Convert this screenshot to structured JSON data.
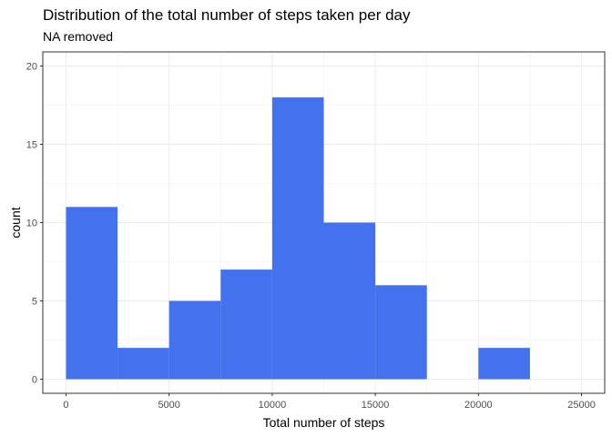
{
  "chart_data": {
    "type": "histogram",
    "title": "Distribution of the total number of steps taken per day",
    "subtitle": "NA removed",
    "xlabel": "Total number of steps",
    "ylabel": "count",
    "bin_width": 2500,
    "bins": [
      {
        "x0": 0,
        "x1": 2500,
        "count": 11
      },
      {
        "x0": 2500,
        "x1": 5000,
        "count": 2
      },
      {
        "x0": 5000,
        "x1": 7500,
        "count": 5
      },
      {
        "x0": 7500,
        "x1": 10000,
        "count": 7
      },
      {
        "x0": 10000,
        "x1": 12500,
        "count": 18
      },
      {
        "x0": 12500,
        "x1": 15000,
        "count": 10
      },
      {
        "x0": 15000,
        "x1": 17500,
        "count": 6
      },
      {
        "x0": 17500,
        "x1": 20000,
        "count": 0
      },
      {
        "x0": 20000,
        "x1": 22500,
        "count": 2
      }
    ],
    "xlim": [
      -1125,
      26125
    ],
    "ylim": [
      -0.9,
      20.9
    ],
    "xticks": [
      0,
      5000,
      10000,
      15000,
      20000,
      25000
    ],
    "yticks": [
      0,
      5,
      10,
      15,
      20
    ],
    "bar_color": "#4472EE",
    "grid": true,
    "border": true
  }
}
